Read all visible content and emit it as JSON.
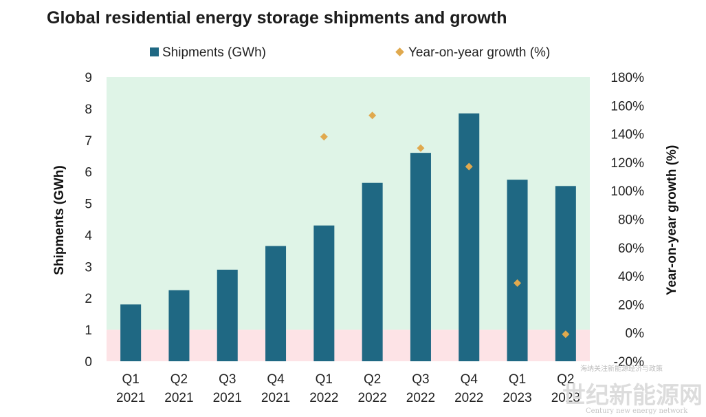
{
  "chart_data": {
    "type": "bar",
    "title": "Global residential energy storage shipments and growth",
    "categories": [
      {
        "quarter": "Q1",
        "year": "2021"
      },
      {
        "quarter": "Q2",
        "year": "2021"
      },
      {
        "quarter": "Q3",
        "year": "2021"
      },
      {
        "quarter": "Q4",
        "year": "2021"
      },
      {
        "quarter": "Q1",
        "year": "2022"
      },
      {
        "quarter": "Q2",
        "year": "2022"
      },
      {
        "quarter": "Q3",
        "year": "2022"
      },
      {
        "quarter": "Q4",
        "year": "2022"
      },
      {
        "quarter": "Q1",
        "year": "2023"
      },
      {
        "quarter": "Q2",
        "year": "2023"
      }
    ],
    "series": [
      {
        "name": "Shipments (GWh)",
        "type": "bar",
        "axis": "left",
        "color": "#1f6883",
        "values": [
          1.8,
          2.25,
          2.9,
          3.65,
          4.3,
          5.65,
          6.6,
          7.85,
          5.75,
          5.55
        ]
      },
      {
        "name": "Year-on-year growth (%)",
        "type": "scatter",
        "axis": "right",
        "color": "#e0a94e",
        "values": [
          null,
          null,
          null,
          null,
          138,
          153,
          130,
          117,
          35,
          -1
        ]
      }
    ],
    "ylabel": "Shipments (GWh)",
    "y2label": "Year-on-year growth (%)",
    "ylim": [
      0,
      9
    ],
    "y2lim": [
      -20,
      180
    ],
    "yticks": [
      "0",
      "1",
      "2",
      "3",
      "4",
      "5",
      "6",
      "7",
      "8",
      "9"
    ],
    "y2ticks": [
      "-20%",
      "0%",
      "20%",
      "40%",
      "60%",
      "80%",
      "100%",
      "120%",
      "140%",
      "160%",
      "180%"
    ],
    "legend_position": "top",
    "background_bands": [
      {
        "from": 1,
        "to": 9,
        "color": "#dff4e7"
      },
      {
        "from": 0,
        "to": 1,
        "color": "#fde3e6"
      }
    ],
    "grid": false
  },
  "watermark": {
    "small": "海纳关注新能源经济与政策",
    "big": "世纪新能源网",
    "sub": "Century new energy network"
  }
}
